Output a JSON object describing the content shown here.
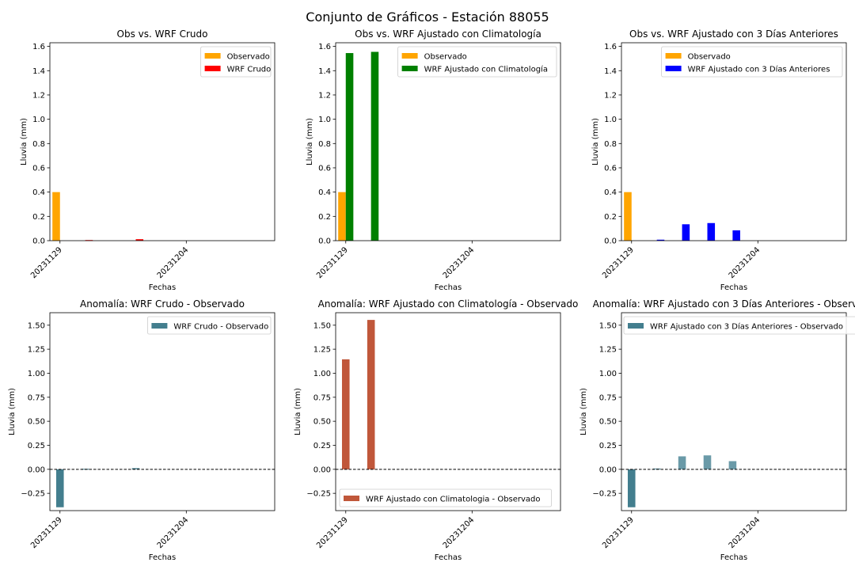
{
  "figure": {
    "suptitle": "Conjunto de Gráficos - Estación 88055"
  },
  "colors": {
    "observado": "#FFA500",
    "wrf_crudo": "#FF0000",
    "wrf_clima": "#008000",
    "wrf_3dias": "#0000FF",
    "anom_teal": "#437E8E",
    "anom_red": "#C0573A",
    "anom_teal_light": "#6A9AA8"
  },
  "chart_data": [
    {
      "type": "bar",
      "title": "Obs vs. WRF Crudo",
      "xlabel": "Fechas",
      "ylabel": "Lluvia (mm)",
      "dates": [
        "20231129",
        "20231130",
        "20231201",
        "20231202",
        "20231203",
        "20231204"
      ],
      "xtick_labels": [
        "20231129",
        "20231204"
      ],
      "xlim": [
        "20231128.6",
        "20231207.5"
      ],
      "ylim": [
        0,
        1.63
      ],
      "yticks": [
        0,
        0.2,
        0.4,
        0.6,
        0.8,
        1.0,
        1.2,
        1.4,
        1.6
      ],
      "ytick_labels": [
        "0.0",
        "0.2",
        "0.4",
        "0.6",
        "0.8",
        "1.0",
        "1.2",
        "1.4",
        "1.6"
      ],
      "grid": false,
      "legend_position": "top-right",
      "series": [
        {
          "name": "Observado",
          "color": "#FFA500",
          "offset": -0.15,
          "values": [
            0.4,
            0,
            0,
            0,
            0,
            0
          ]
        },
        {
          "name": "WRF Crudo",
          "color": "#FF0000",
          "offset": 0.15,
          "values": [
            0,
            0.005,
            0,
            0.012,
            0,
            0
          ]
        }
      ]
    },
    {
      "type": "bar",
      "title": "Obs vs. WRF Ajustado con Climatología",
      "xlabel": "Fechas",
      "ylabel": "Lluvia (mm)",
      "dates": [
        "20231129",
        "20231130",
        "20231201",
        "20231202",
        "20231203",
        "20231204"
      ],
      "xtick_labels": [
        "20231129",
        "20231204"
      ],
      "xlim": [
        "20231128.6",
        "20231207.5"
      ],
      "ylim": [
        0,
        1.63
      ],
      "yticks": [
        0,
        0.2,
        0.4,
        0.6,
        0.8,
        1.0,
        1.2,
        1.4,
        1.6
      ],
      "ytick_labels": [
        "0.0",
        "0.2",
        "0.4",
        "0.6",
        "0.8",
        "1.0",
        "1.2",
        "1.4",
        "1.6"
      ],
      "grid": false,
      "legend_position": "top-right",
      "series": [
        {
          "name": "Observado",
          "color": "#FFA500",
          "offset": -0.15,
          "values": [
            0.4,
            0,
            0,
            0,
            0,
            0
          ]
        },
        {
          "name": "WRF Ajustado con Climatología",
          "color": "#008000",
          "offset": 0.15,
          "values": [
            1.545,
            1.555,
            0,
            0,
            0,
            0
          ]
        }
      ]
    },
    {
      "type": "bar",
      "title": "Obs vs. WRF Ajustado con 3 Días Anteriores",
      "xlabel": "Fechas",
      "ylabel": "Lluvia (mm)",
      "dates": [
        "20231129",
        "20231130",
        "20231201",
        "20231202",
        "20231203",
        "20231204"
      ],
      "xtick_labels": [
        "20231129",
        "20231204"
      ],
      "xlim": [
        "20231128.6",
        "20231207.5"
      ],
      "ylim": [
        0,
        1.63
      ],
      "yticks": [
        0,
        0.2,
        0.4,
        0.6,
        0.8,
        1.0,
        1.2,
        1.4,
        1.6
      ],
      "ytick_labels": [
        "0.0",
        "0.2",
        "0.4",
        "0.6",
        "0.8",
        "1.0",
        "1.2",
        "1.4",
        "1.6"
      ],
      "grid": false,
      "legend_position": "top-right",
      "series": [
        {
          "name": "Observado",
          "color": "#FFA500",
          "offset": -0.15,
          "values": [
            0.4,
            0,
            0,
            0,
            0,
            0
          ]
        },
        {
          "name": "WRF Ajustado con 3 Días Anteriores",
          "color": "#0000FF",
          "offset": 0.15,
          "values": [
            0,
            0.008,
            0.135,
            0.145,
            0.085,
            0
          ]
        }
      ]
    },
    {
      "type": "bar",
      "title": "Anomalía: WRF Crudo - Observado",
      "xlabel": "Fechas",
      "ylabel": "Lluvia (mm)",
      "dates": [
        "20231129",
        "20231130",
        "20231201",
        "20231202",
        "20231203",
        "20231204"
      ],
      "xtick_labels": [
        "20231129",
        "20231204"
      ],
      "xlim": [
        "20231128.6",
        "20231207.5"
      ],
      "ylim": [
        -0.43,
        1.63
      ],
      "yticks": [
        -0.25,
        0,
        0.25,
        0.5,
        0.75,
        1.0,
        1.25,
        1.5
      ],
      "ytick_labels": [
        "−0.25",
        "0.00",
        "0.25",
        "0.50",
        "0.75",
        "1.00",
        "1.25",
        "1.50"
      ],
      "zero_line": true,
      "grid": false,
      "legend_position": "top-right",
      "series": [
        {
          "name": "WRF Crudo - Observado",
          "color": "#437E8E",
          "offset": 0,
          "values": [
            -0.395,
            0.005,
            0,
            0.012,
            0,
            0
          ]
        }
      ]
    },
    {
      "type": "bar",
      "title": "Anomalía: WRF Ajustado con Climatología - Observado",
      "xlabel": "Fechas",
      "ylabel": "Lluvia (mm)",
      "dates": [
        "20231129",
        "20231130",
        "20231201",
        "20231202",
        "20231203",
        "20231204"
      ],
      "xtick_labels": [
        "20231129",
        "20231204"
      ],
      "xlim": [
        "20231128.6",
        "20231207.5"
      ],
      "ylim": [
        -0.43,
        1.63
      ],
      "yticks": [
        -0.25,
        0,
        0.25,
        0.5,
        0.75,
        1.0,
        1.25,
        1.5
      ],
      "ytick_labels": [
        "−0.25",
        "0.00",
        "0.25",
        "0.50",
        "0.75",
        "1.00",
        "1.25",
        "1.50"
      ],
      "zero_line": true,
      "grid": false,
      "legend_position": "bottom-left",
      "series": [
        {
          "name": "WRF Ajustado con Climatologia - Observado",
          "color": "#C0573A",
          "offset": 0,
          "values": [
            1.145,
            1.555,
            0,
            0,
            0,
            0
          ]
        }
      ]
    },
    {
      "type": "bar",
      "title": "Anomalía: WRF Ajustado con 3 Días Anteriores - Observado",
      "xlabel": "Fechas",
      "ylabel": "Lluvia (mm)",
      "dates": [
        "20231129",
        "20231130",
        "20231201",
        "20231202",
        "20231203",
        "20231204"
      ],
      "xtick_labels": [
        "20231129",
        "20231204"
      ],
      "xlim": [
        "20231128.6",
        "20231207.5"
      ],
      "ylim": [
        -0.43,
        1.63
      ],
      "yticks": [
        -0.25,
        0,
        0.25,
        0.5,
        0.75,
        1.0,
        1.25,
        1.5
      ],
      "ytick_labels": [
        "−0.25",
        "0.00",
        "0.25",
        "0.50",
        "0.75",
        "1.00",
        "1.25",
        "1.50"
      ],
      "zero_line": true,
      "grid": false,
      "legend_position": "top-left",
      "series": [
        {
          "name": "WRF Ajustado con 3 Días Anteriores - Observado",
          "color": "#437E8E",
          "colors": [
            "#437E8E",
            "#437E8E",
            "#6A9AA8",
            "#6A9AA8",
            "#6A9AA8",
            "#437E8E"
          ],
          "offset": 0,
          "values": [
            -0.395,
            0.008,
            0.135,
            0.145,
            0.085,
            0
          ]
        }
      ]
    }
  ]
}
